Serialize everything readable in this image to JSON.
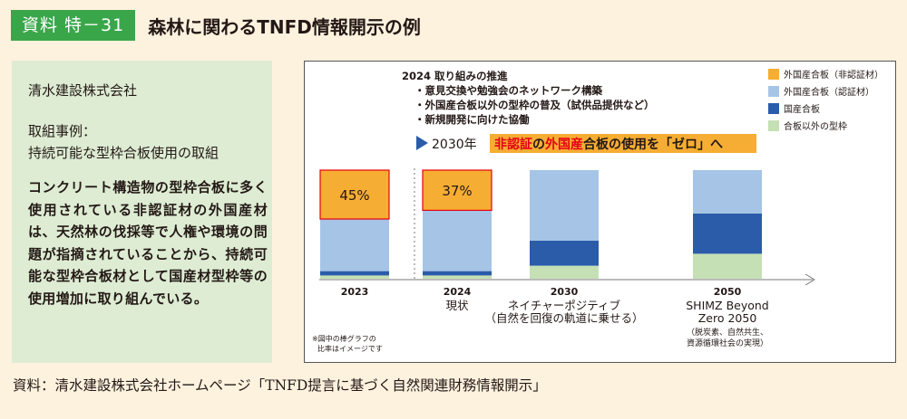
{
  "header": {
    "badge": "資料 特－31",
    "title": "森林に関わるTNFD情報開示の例"
  },
  "left_panel": {
    "company": "清水建設株式会社",
    "case_label": "取組事例：",
    "case_title": "持続可能な型枠合板使用の取組",
    "body": "コンクリート構造物の型枠合板に多く使用されている非認証材の外国産材は、天然林の伐採等で人権や環境の問題が指摘されていることから、持続可能な型枠合板材として国産材型枠等の使用増加に取り組んでいる。"
  },
  "source": "資料：清水建設株式会社ホームページ「TNFD提言に基づく自然関連財務情報開示」",
  "chart_data": {
    "type": "bar",
    "stacked": true,
    "categories": [
      "2023",
      "2024",
      "2030",
      "2050"
    ],
    "category_sublabels": [
      [],
      [
        "現状"
      ],
      [
        "ネイチャーポジティブ",
        "（自然を回復の軌道に乗せる）"
      ],
      [
        "SHIMZ Beyond",
        "Zero 2050",
        "（脱炭素、自然共生、",
        "資源循環社会の実現）"
      ]
    ],
    "series": [
      {
        "name": "合板以外の型枠",
        "color": "#c5e0b4",
        "values": [
          3,
          3,
          12,
          23
        ]
      },
      {
        "name": "国産合板",
        "color": "#2b5caa",
        "values": [
          4,
          4,
          23,
          37
        ]
      },
      {
        "name": "外国産合板（認証材）",
        "color": "#a6c4e6",
        "values": [
          48,
          56,
          65,
          40
        ]
      },
      {
        "name": "外国産合板（非認証材）",
        "color": "#f6ad33",
        "values": [
          45,
          37,
          0,
          0
        ]
      }
    ],
    "data_labels": [
      "45%",
      "37%"
    ],
    "ylim": [
      0,
      100
    ],
    "annotation": {
      "heading": "2024 取り組みの推進",
      "items": [
        "・意見交換や勉強会のネットワーク構築",
        "・外国産合板以外の型枠の普及（試供品提供など）",
        "・新規開発に向けた協働"
      ],
      "goal_prefix": "2030年",
      "goal_parts": [
        {
          "text": "非認証",
          "color": "#e60012"
        },
        {
          "text": "の",
          "color": "#231815"
        },
        {
          "text": "外国産",
          "color": "#e60012"
        },
        {
          "text": "合板の使用を「ゼロ」へ",
          "color": "#231815"
        }
      ],
      "goal_bg": "#f6ad33",
      "arrow_color": "#2b5caa"
    },
    "note": [
      "※図中の棒グラフの",
      "比率はイメージです"
    ],
    "legend_position": "top-right"
  }
}
